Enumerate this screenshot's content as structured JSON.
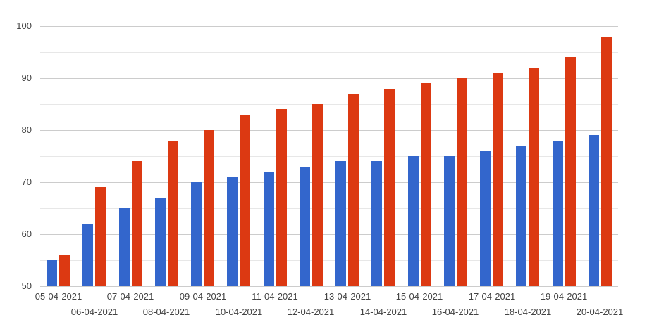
{
  "chart_data": {
    "type": "bar",
    "title": "",
    "categories": [
      "05-04-2021",
      "06-04-2021",
      "07-04-2021",
      "08-04-2021",
      "09-04-2021",
      "10-04-2021",
      "11-04-2021",
      "12-04-2021",
      "13-04-2021",
      "14-04-2021",
      "15-04-2021",
      "16-04-2021",
      "17-04-2021",
      "18-04-2021",
      "19-04-2021",
      "20-04-2021"
    ],
    "series": [
      {
        "name": "blue",
        "color": "#3366cc",
        "values": [
          55,
          62,
          65,
          67,
          70,
          71,
          72,
          73,
          74,
          74,
          75,
          75,
          76,
          77,
          78,
          79
        ]
      },
      {
        "name": "red",
        "color": "#dc3912",
        "values": [
          56,
          69,
          74,
          78,
          80,
          83,
          84,
          85,
          87,
          88,
          89,
          90,
          91,
          92,
          94,
          98
        ]
      }
    ],
    "xlabel": "",
    "ylabel": "",
    "ylim": [
      50,
      100
    ],
    "y_major_step": 10,
    "y_minor_step": 5,
    "y_tick_labels": [
      "50",
      "60",
      "70",
      "80",
      "90",
      "100"
    ],
    "grid": true,
    "legend_position": "none",
    "x_label_layout": "staggered-two-rows"
  },
  "colors": {
    "background": "#ffffff",
    "major_gridline": "#cccccc",
    "minor_gridline": "#e7e7e7",
    "axis_label": "#444444"
  }
}
